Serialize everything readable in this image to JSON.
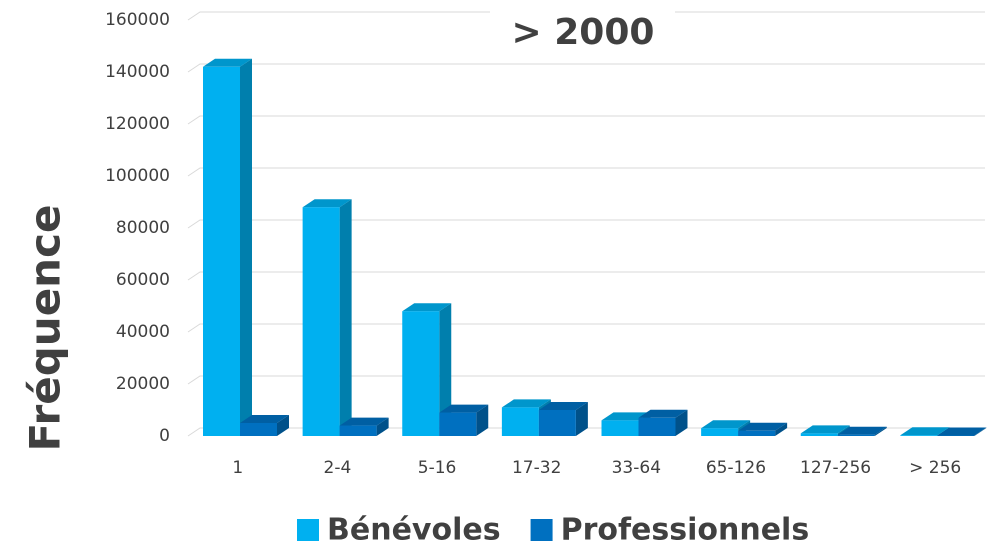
{
  "chart_data": {
    "type": "bar3d",
    "title": "> 2000",
    "y_label": "Fréquence",
    "categories": [
      "1",
      "2-4",
      "5-16",
      "17-32",
      "33-64",
      "65-126",
      "127-256",
      "> 256"
    ],
    "series": [
      {
        "name": "Bénévoles",
        "color": "#00b0f0",
        "values": [
          142000,
          88000,
          48000,
          11000,
          6000,
          3000,
          1000,
          300
        ]
      },
      {
        "name": "Professionnels",
        "color": "#0070c0",
        "values": [
          5000,
          4000,
          9000,
          10000,
          7000,
          2000,
          500,
          200
        ]
      }
    ],
    "ylim": [
      0,
      160000
    ],
    "yticks": [
      0,
      20000,
      40000,
      60000,
      80000,
      100000,
      120000,
      140000,
      160000
    ],
    "grid": true,
    "legend": "bottom"
  }
}
